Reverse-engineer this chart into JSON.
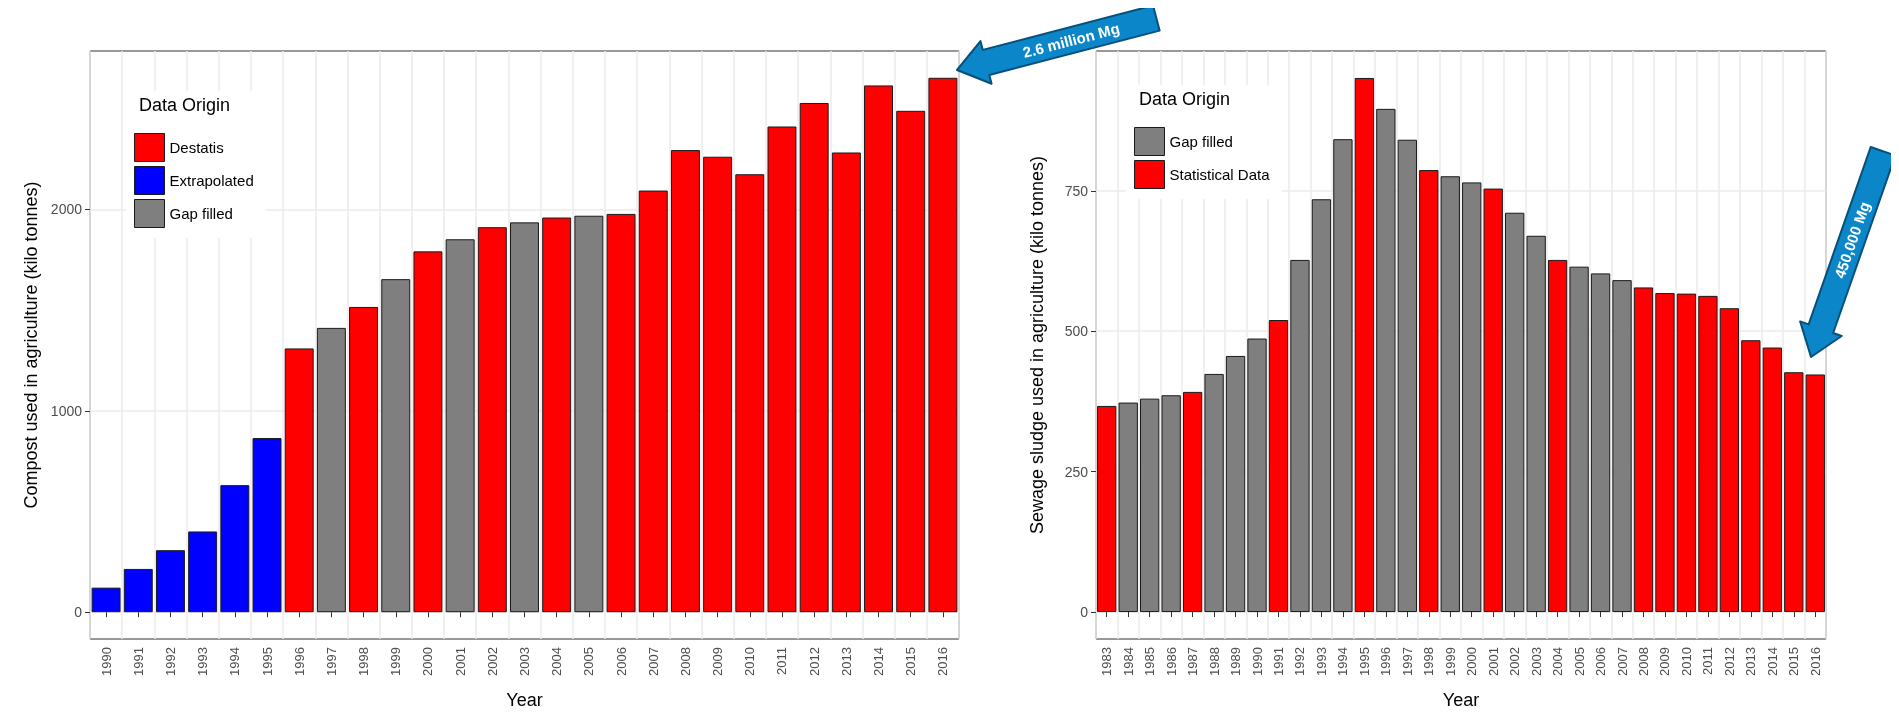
{
  "chart_data": [
    {
      "type": "bar",
      "xlabel": "Year",
      "ylabel": "Compost used in agriculture (kilo tonnes)",
      "legend_title": "Data Origin",
      "legend": "top left",
      "grid": true,
      "categories": [
        "1990",
        "1991",
        "1992",
        "1993",
        "1994",
        "1995",
        "1996",
        "1997",
        "1998",
        "1999",
        "2000",
        "2001",
        "2002",
        "2003",
        "2004",
        "2005",
        "2006",
        "2007",
        "2008",
        "2009",
        "2010",
        "2011",
        "2012",
        "2013",
        "2014",
        "2015",
        "2016"
      ],
      "series": [
        {
          "name": "Destatis",
          "color": "#ff0000",
          "values": [
            null,
            null,
            null,
            null,
            null,
            null,
            1310,
            null,
            1516,
            null,
            1792,
            null,
            1912,
            null,
            1960,
            null,
            1978,
            2094,
            2295,
            2262,
            2175,
            2412,
            2529,
            2283,
            2616,
            2490,
            2654
          ]
        },
        {
          "name": "Extrapolated",
          "color": "#0000ff",
          "values": [
            122,
            215,
            308,
            401,
            631,
            865,
            null,
            null,
            null,
            null,
            null,
            null,
            null,
            null,
            null,
            null,
            null,
            null,
            null,
            null,
            null,
            null,
            null,
            null,
            null,
            null,
            null
          ]
        },
        {
          "name": "Gap filled",
          "color": "#7f7f7f",
          "values": [
            null,
            null,
            null,
            null,
            null,
            null,
            null,
            1412,
            null,
            1654,
            null,
            1852,
            null,
            1936,
            null,
            1969,
            null,
            null,
            null,
            null,
            null,
            null,
            null,
            null,
            null,
            null,
            null
          ]
        }
      ],
      "ylim": [
        -133,
        2787
      ],
      "yticks": [
        0,
        1000,
        2000
      ],
      "annotations": [
        "2.6 million Mg"
      ]
    },
    {
      "type": "bar",
      "xlabel": "Year",
      "ylabel": "Sewage sludge used in agriculture (kilo tonnes)",
      "legend_title": "Data Origin",
      "legend": "top left",
      "grid": true,
      "categories": [
        "1983",
        "1984",
        "1985",
        "1986",
        "1987",
        "1988",
        "1989",
        "1990",
        "1991",
        "1992",
        "1993",
        "1994",
        "1995",
        "1996",
        "1997",
        "1998",
        "1999",
        "2000",
        "2001",
        "2002",
        "2003",
        "2004",
        "2005",
        "2006",
        "2007",
        "2008",
        "2009",
        "2010",
        "2011",
        "2012",
        "2013",
        "2014",
        "2015",
        "2016"
      ],
      "series": [
        {
          "name": "Gap filled",
          "color": "#7f7f7f",
          "values": [
            null,
            373,
            380,
            386,
            null,
            424,
            456,
            487,
            null,
            627,
            735,
            842,
            null,
            896,
            841,
            null,
            776,
            765,
            null,
            711,
            670,
            null,
            615,
            603,
            591,
            null,
            null,
            null,
            null,
            null,
            null,
            null,
            null,
            null
          ]
        },
        {
          "name": "Statistical Data",
          "color": "#ff0000",
          "values": [
            367,
            null,
            null,
            null,
            392,
            null,
            null,
            null,
            520,
            null,
            null,
            null,
            951,
            null,
            null,
            787,
            null,
            null,
            754,
            null,
            null,
            627,
            null,
            null,
            null,
            578,
            568,
            567,
            563,
            541,
            484,
            471,
            427,
            423
          ]
        }
      ],
      "ylim": [
        -48,
        999
      ],
      "yticks": [
        0,
        250,
        500,
        750
      ],
      "annotations": [
        "450,000 Mg"
      ]
    }
  ]
}
